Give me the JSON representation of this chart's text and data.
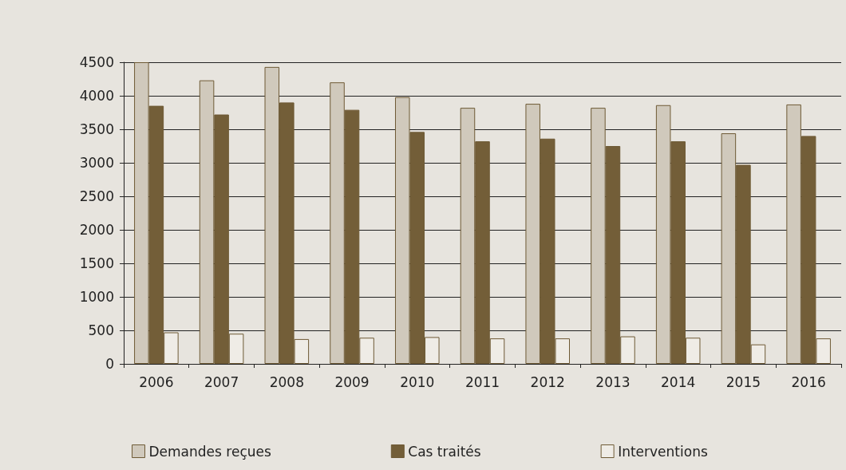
{
  "chart_data": {
    "type": "bar",
    "categories": [
      "2006",
      "2007",
      "2008",
      "2009",
      "2010",
      "2011",
      "2012",
      "2013",
      "2014",
      "2015",
      "2016"
    ],
    "series": [
      {
        "name": "Demandes reçues",
        "color": "#d0c9bc",
        "values": [
          4500,
          4230,
          4430,
          4200,
          3980,
          3820,
          3880,
          3820,
          3860,
          3440,
          3870
        ]
      },
      {
        "name": "Cas traités",
        "color": "#735e38",
        "values": [
          3850,
          3720,
          3900,
          3790,
          3460,
          3320,
          3360,
          3250,
          3320,
          2970,
          3400
        ]
      },
      {
        "name": "Interventions",
        "color": "#efece6",
        "values": [
          470,
          450,
          370,
          390,
          400,
          380,
          380,
          410,
          390,
          290,
          380
        ]
      }
    ],
    "ylim": [
      0,
      4500
    ],
    "yticks": [
      0,
      500,
      1000,
      1500,
      2000,
      2500,
      3000,
      3500,
      4000,
      4500
    ],
    "grid": "y",
    "legend": "bottom"
  }
}
